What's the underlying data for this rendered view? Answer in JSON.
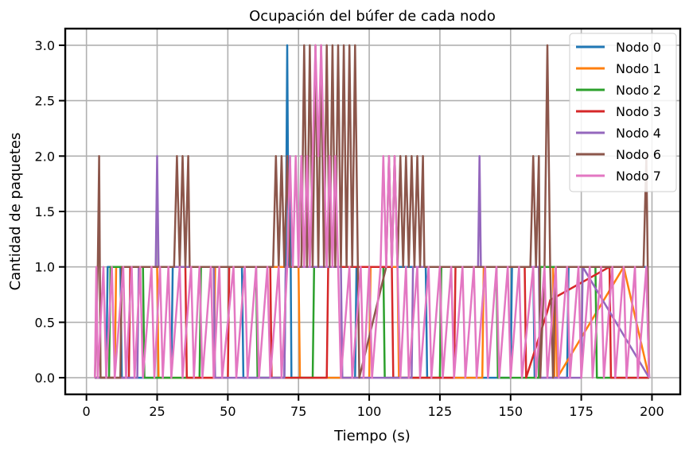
{
  "chart_data": {
    "type": "line",
    "title": "Ocupación del búfer de cada nodo",
    "xlabel": "Tiempo (s)",
    "ylabel": "Cantidad de paquetes",
    "xlim": [
      -7.5,
      210
    ],
    "ylim": [
      -0.15,
      3.15
    ],
    "xticks": [
      0,
      25,
      50,
      75,
      100,
      125,
      150,
      175,
      200
    ],
    "yticks": [
      0.0,
      0.5,
      1.0,
      1.5,
      2.0,
      2.5,
      3.0
    ],
    "xtick_labels": [
      "0",
      "25",
      "50",
      "75",
      "100",
      "125",
      "150",
      "175",
      "200"
    ],
    "ytick_labels": [
      "0.0",
      "0.5",
      "1.0",
      "1.5",
      "2.0",
      "2.5",
      "3.0"
    ],
    "grid": true,
    "legend_position": "top-right",
    "series": [
      {
        "name": "Nodo 0",
        "color": "#1f77b4",
        "x": [
          3,
          7,
          7.5,
          12,
          12.5,
          30,
          30.5,
          55,
          55.5,
          70,
          70.5,
          71,
          71.5,
          72,
          72.5,
          95,
          95.5,
          120,
          120.5,
          150,
          150.5,
          158,
          158.5,
          170,
          170.5,
          198,
          199
        ],
        "y": [
          0,
          0,
          1,
          1,
          0,
          0,
          1,
          1,
          0,
          0,
          1,
          3,
          1,
          2,
          0,
          0,
          1,
          1,
          0,
          0,
          1,
          1,
          0,
          0,
          1,
          1,
          0
        ]
      },
      {
        "name": "Nodo 1",
        "color": "#ff7f0e",
        "x": [
          3,
          10,
          10.5,
          25,
          25.5,
          45,
          45.5,
          75,
          75.5,
          100,
          100.5,
          110,
          110.5,
          140,
          140.5,
          165,
          165.5,
          166,
          166.5,
          190,
          199
        ],
        "y": [
          0,
          0,
          1,
          1,
          0,
          0,
          1,
          1,
          0,
          0,
          1,
          1,
          0,
          0,
          1,
          1,
          0,
          1,
          0,
          1,
          0
        ]
      },
      {
        "name": "Nodo 2",
        "color": "#2ca02c",
        "x": [
          3,
          8,
          8.5,
          20,
          20.5,
          40,
          40.5,
          60,
          60.5,
          80,
          80.5,
          105,
          105.5,
          125,
          125.5,
          145,
          145.5,
          160,
          160.5,
          180,
          180.5,
          199
        ],
        "y": [
          0,
          0,
          1,
          1,
          0,
          0,
          1,
          1,
          0,
          0,
          1,
          1,
          0,
          0,
          1,
          1,
          0,
          0,
          1,
          1,
          0,
          0
        ]
      },
      {
        "name": "Nodo 3",
        "color": "#d62728",
        "x": [
          3,
          15,
          15.5,
          35,
          35.5,
          50,
          50.5,
          65,
          65.5,
          85,
          85.5,
          108,
          108.5,
          130,
          130.5,
          155,
          155.5,
          163,
          164,
          185,
          185.5,
          199
        ],
        "y": [
          0,
          0,
          1,
          1,
          0,
          0,
          1,
          1,
          0,
          0,
          1,
          1,
          0,
          0,
          1,
          1,
          0,
          0.6,
          0.7,
          1,
          0,
          0
        ]
      },
      {
        "name": "Nodo 4",
        "color": "#9467bd",
        "x": [
          3,
          18,
          18.5,
          24.5,
          25,
          25.5,
          45,
          45.5,
          70,
          70.5,
          90,
          90.5,
          115,
          115.5,
          138.5,
          139,
          139.5,
          160,
          160.5,
          175,
          175.5,
          199
        ],
        "y": [
          0,
          0,
          1,
          1,
          2,
          1,
          1,
          0,
          0,
          1,
          1,
          0,
          0,
          1,
          1,
          2,
          1,
          1,
          0,
          0,
          1,
          0
        ]
      },
      {
        "name": "Nodo 6",
        "color": "#8c564b",
        "x": [
          3,
          4,
          4.5,
          5,
          12,
          12.5,
          31,
          32,
          33,
          34,
          35,
          36,
          36.5,
          60,
          66,
          67,
          68,
          69,
          70,
          71,
          72,
          76,
          77,
          78,
          79,
          80,
          81,
          82,
          83,
          84,
          85,
          86,
          87,
          88,
          89,
          90,
          91,
          92,
          93,
          94,
          95,
          96,
          96.5,
          106,
          107,
          108,
          109,
          110,
          111,
          112,
          113,
          114,
          115,
          116,
          117,
          118,
          119,
          119.5,
          140,
          157,
          158,
          159,
          160,
          160.5,
          162,
          163,
          164,
          165,
          166,
          180,
          197,
          198,
          199
        ],
        "y": [
          0,
          1,
          2,
          0,
          0,
          1,
          1,
          2,
          1,
          2,
          1,
          2,
          1,
          1,
          1,
          2,
          1,
          2,
          1,
          2,
          1,
          1,
          3,
          1,
          3,
          1,
          3,
          1,
          3,
          1,
          3,
          1,
          3,
          1,
          3,
          1,
          3,
          1,
          3,
          1,
          3,
          1,
          0,
          1,
          2,
          1,
          2,
          1,
          2,
          1,
          2,
          1,
          2,
          1,
          2,
          1,
          2,
          1,
          1,
          1,
          2,
          1,
          2,
          0,
          1,
          3,
          1,
          0,
          1,
          1,
          1,
          2,
          0
        ]
      },
      {
        "name": "Nodo 7",
        "color": "#e377c2",
        "x": [
          3,
          3.5,
          4,
          6,
          7,
          9,
          10,
          13,
          14,
          16,
          17,
          19,
          20,
          23,
          24,
          26,
          27,
          29,
          30,
          33,
          34,
          37,
          38,
          40,
          41,
          44,
          45,
          47,
          48,
          52,
          53,
          56,
          57,
          60,
          61,
          64,
          65,
          68,
          69,
          71,
          72,
          73,
          74,
          75,
          76,
          77,
          78,
          79,
          80,
          81,
          82,
          83,
          84,
          85,
          86,
          87,
          88,
          89,
          90,
          93,
          94,
          97,
          98,
          100,
          101,
          104,
          105,
          106,
          107,
          108,
          109,
          110,
          111,
          113,
          114,
          117,
          118,
          121,
          122,
          125,
          126,
          129,
          130,
          133,
          134,
          137,
          138,
          141,
          142,
          145,
          146,
          149,
          150,
          153,
          154,
          158,
          159,
          162,
          163,
          166,
          167,
          170,
          171,
          174,
          175,
          178,
          179,
          182,
          183,
          186,
          187,
          190,
          191,
          194,
          195,
          198,
          199
        ],
        "y": [
          0,
          1,
          0,
          1,
          0,
          1,
          0,
          1,
          0,
          1,
          0,
          1,
          0,
          1,
          0,
          1,
          0,
          1,
          0,
          1,
          0,
          1,
          0,
          1,
          0,
          1,
          0,
          1,
          0,
          1,
          0,
          1,
          0,
          1,
          0,
          1,
          0,
          1,
          0,
          1,
          2,
          1,
          2,
          1,
          2,
          1,
          2,
          1,
          2,
          3,
          2,
          3,
          2,
          1,
          2,
          1,
          2,
          1,
          0,
          1,
          0,
          1,
          0,
          1,
          0,
          1,
          2,
          1,
          2,
          1,
          2,
          1,
          0,
          1,
          0,
          1,
          0,
          1,
          0,
          1,
          0,
          1,
          0,
          1,
          0,
          1,
          0,
          1,
          0,
          1,
          0,
          1,
          0,
          1,
          0,
          1,
          0,
          1,
          0,
          1,
          0,
          1,
          0,
          1,
          0,
          1,
          0,
          1,
          0,
          1,
          0,
          1,
          0,
          1,
          0,
          1,
          0
        ]
      }
    ]
  }
}
